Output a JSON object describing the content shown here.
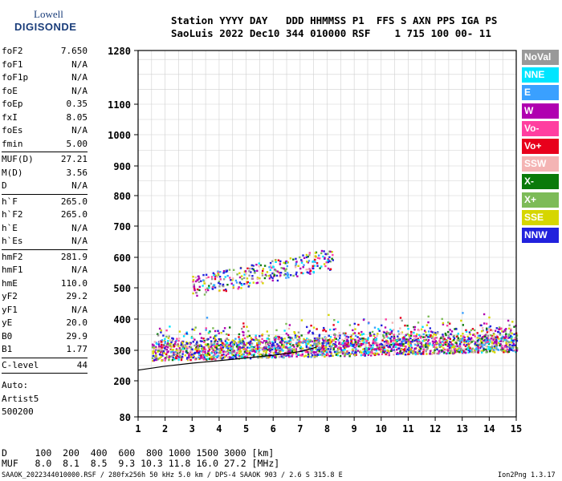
{
  "logo": {
    "top": "Lowell",
    "bottom": "DIGISONDE"
  },
  "header": {
    "line1": "Station YYYY DAY   DDD HHMMSS P1  FFS S AXN PPS IGA PS",
    "line2": "SaoLuis 2022 Dec10 344 010000 RSF    1 715 100 00- 11"
  },
  "params": {
    "group1": [
      {
        "k": "foF2",
        "v": "7.650"
      },
      {
        "k": "foF1",
        "v": "N/A"
      },
      {
        "k": "foF1p",
        "v": "N/A"
      },
      {
        "k": "foE",
        "v": "N/A"
      },
      {
        "k": "foEp",
        "v": "0.35"
      },
      {
        "k": "fxI",
        "v": "8.05"
      },
      {
        "k": "foEs",
        "v": "N/A"
      },
      {
        "k": "fmin",
        "v": "5.00"
      }
    ],
    "group2": [
      {
        "k": "MUF(D)",
        "v": "27.21"
      },
      {
        "k": "M(D)",
        "v": "3.56"
      },
      {
        "k": "D",
        "v": "N/A"
      }
    ],
    "group3": [
      {
        "k": "h`F",
        "v": "265.0"
      },
      {
        "k": "h`F2",
        "v": "265.0"
      },
      {
        "k": "h`E",
        "v": "N/A"
      },
      {
        "k": "h`Es",
        "v": "N/A"
      }
    ],
    "group4": [
      {
        "k": "hmF2",
        "v": "281.9"
      },
      {
        "k": "hmF1",
        "v": "N/A"
      },
      {
        "k": "hmE",
        "v": "110.0"
      },
      {
        "k": "yF2",
        "v": "29.2"
      },
      {
        "k": "yF1",
        "v": "N/A"
      },
      {
        "k": "yE",
        "v": "20.0"
      },
      {
        "k": "B0",
        "v": "29.9"
      },
      {
        "k": "B1",
        "v": "1.77"
      }
    ],
    "clevel": {
      "k": "C-level",
      "v": "44"
    },
    "auto": [
      "Auto:",
      "Artist5",
      "500200"
    ]
  },
  "legend": [
    {
      "label": "NoVal",
      "color": "#999999"
    },
    {
      "label": "NNE",
      "color": "#00e5ff"
    },
    {
      "label": "E",
      "color": "#3aa0ff"
    },
    {
      "label": "W",
      "color": "#b000b0"
    },
    {
      "label": "Vo-",
      "color": "#ff3fa0"
    },
    {
      "label": "Vo+",
      "color": "#e8001c"
    },
    {
      "label": "SSW",
      "color": "#f4b4b4"
    },
    {
      "label": "X-",
      "color": "#0a7a0a"
    },
    {
      "label": "X+",
      "color": "#7dbb58"
    },
    {
      "label": "SSE",
      "color": "#d6d600"
    },
    {
      "label": "NNW",
      "color": "#2222dd"
    }
  ],
  "bottom": {
    "d_line": "D     100  200  400  600  800 1000 1500 3000 [km]",
    "muf_line": "MUF   8.0  8.1  8.5  9.3 10.3 11.8 16.0 27.2 [MHz]",
    "footer_left": "SAAOK_2022344010000.RSF / 280fx256h 50 kHz 5.0 km / DPS-4 SAAOK 903 / 2.6 S 315.8 E",
    "footer_right": "Ion2Png 1.3.17"
  },
  "chart_data": {
    "type": "scatter",
    "x_ticks": [
      "1",
      "2",
      "3",
      "4",
      "5",
      "6",
      "7",
      "8",
      "9",
      "10",
      "11",
      "12",
      "13",
      "14",
      "15"
    ],
    "y_ticks": [
      "80",
      "200",
      "300",
      "400",
      "500",
      "600",
      "700",
      "800",
      "900",
      "1000",
      "1100",
      "1280"
    ],
    "xlim": [
      1,
      15
    ],
    "ylim": [
      80,
      1280
    ],
    "grid": true,
    "clusters": [
      {
        "name": "F-layer trace",
        "x": [
          1.5,
          15.0
        ],
        "y": [
          265,
          420
        ]
      },
      {
        "name": "second hop",
        "x": [
          3.0,
          8.2
        ],
        "y": [
          480,
          640
        ]
      }
    ],
    "profile_line": [
      [
        1,
        235
      ],
      [
        2,
        248
      ],
      [
        3,
        258
      ],
      [
        4,
        266
      ],
      [
        5,
        275
      ],
      [
        6,
        284
      ],
      [
        7,
        296
      ],
      [
        7.6,
        310
      ]
    ]
  }
}
